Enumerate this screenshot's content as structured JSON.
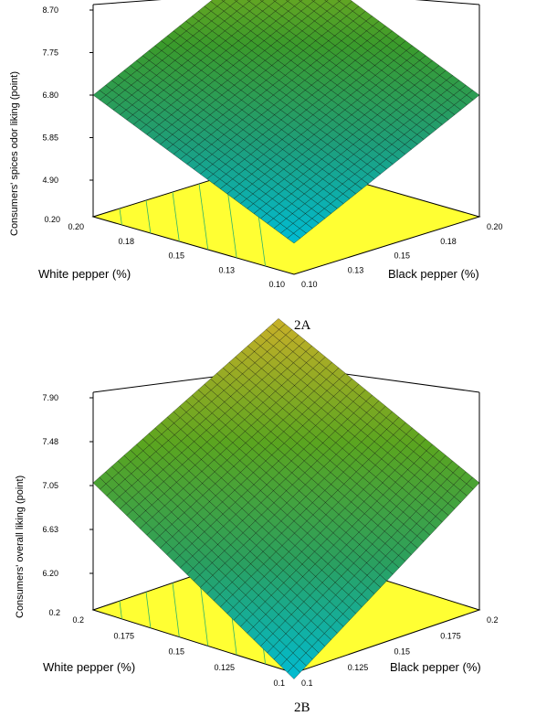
{
  "chart_data": [
    {
      "type": "surface3d",
      "caption": "2A",
      "zlabel": "Consumers' spices odor liking (point)",
      "xlabel": "Black pepper (%)",
      "ylabel": "White pepper (%)",
      "z_ticks": [
        "4.90",
        "5.85",
        "6.80",
        "7.75",
        "8.70"
      ],
      "z_floor_label": "0.20",
      "x_ticks": [
        "0.10",
        "0.13",
        "0.15",
        "0.18",
        "0.20"
      ],
      "y_ticks": [
        "0.10",
        "0.13",
        "0.15",
        "0.18",
        "0.20"
      ],
      "xlim": [
        0.1,
        0.2
      ],
      "ylim": [
        0.1,
        0.2
      ],
      "zlim": [
        4.9,
        8.7
      ],
      "surface_corners": {
        "x_low_y_low": 4.9,
        "x_high_y_low": 6.8,
        "x_low_y_high": 6.8,
        "x_high_y_high": 8.7
      },
      "colormap": [
        "#00bcd4",
        "#1e9e7a",
        "#3a9b2c",
        "#8fb21a"
      ],
      "contour_floor_color": "#ffff33"
    },
    {
      "type": "surface3d",
      "caption": "2B",
      "zlabel": "Consumers' overall liking (point)",
      "xlabel": "Black pepper (%)",
      "ylabel": "White pepper (%)",
      "z_ticks": [
        "6.20",
        "6.63",
        "7.05",
        "7.48",
        "7.90"
      ],
      "z_floor_label": "0.2",
      "x_ticks": [
        "0.1",
        "0.125",
        "0.15",
        "0.175",
        "0.2"
      ],
      "y_ticks": [
        "0.1",
        "0.125",
        "0.15",
        "0.175",
        "0.2"
      ],
      "xlim": [
        0.1,
        0.2
      ],
      "ylim": [
        0.1,
        0.2
      ],
      "zlim": [
        6.2,
        7.9
      ],
      "surface_corners": {
        "x_low_y_low": 5.8,
        "x_high_y_low": 7.05,
        "x_low_y_high": 7.05,
        "x_high_y_high": 8.0
      },
      "colormap": [
        "#00bcd4",
        "#2aa060",
        "#5aa520",
        "#c8b028"
      ],
      "contour_floor_color": "#ffff33"
    }
  ]
}
